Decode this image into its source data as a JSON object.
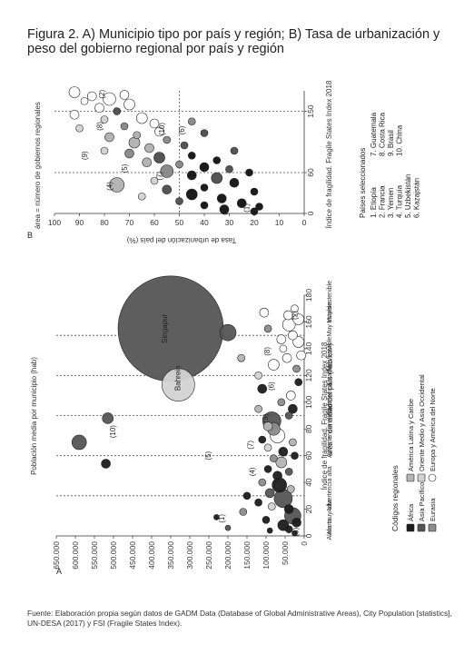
{
  "title": "Figura 2. A) Municipio tipo por país y región; B) Tasa de urbanización y peso del gobierno regional por país y región",
  "source": "Fuente: Elaboración propia según datos de GADM Data (Database of Global Administrative Areas), City Population [statistics], UN-DESA (2017) y FSI (Fragile States Index).",
  "colors": {
    "africa": "#1c1c1c",
    "asia_pacifico": "#555555",
    "eurasia": "#8c8c8c",
    "america_latina": "#b4b4b4",
    "oriente_medio": "#d3d3d3",
    "europa_america_norte": "#ffffff",
    "guide": "#555555"
  },
  "chart_data": [
    {
      "type": "scatter",
      "panel_label": "A",
      "ylabel": "Población media por municipio (hab)",
      "xlabel": "Índice de fragilidad. Fragile States Index 2018",
      "size_note": "área = densidad del país (hab/km²)",
      "y_ticks": [
        "0",
        "50.000",
        "100.000",
        "150.000",
        "200.000",
        "250.000",
        "300.000",
        "350.000",
        "400.000",
        "450.000",
        "500.000",
        "550.000",
        "600.000",
        "650.000"
      ],
      "x_ticks": [
        "0",
        "20",
        "40",
        "60",
        "80",
        "100",
        "120",
        "140",
        "160",
        "180"
      ],
      "xlim": [
        0,
        180
      ],
      "ylim": [
        0,
        650000
      ],
      "categories": [
        "Alerta muy alta",
        "Alerta",
        "Advertencia alta",
        "Advertencia elevada",
        "Advertencia",
        "Estable",
        "Más estable",
        "Muy estable",
        "Muy sostenible"
      ],
      "category_labels": [
        {
          "label": "Aleta muy alta",
          "x": 12
        },
        {
          "label": "Alerta",
          "x": 7
        },
        {
          "label": "Advertencia alta",
          "x": 35
        },
        {
          "label": "Advertencia elevada",
          "x": 80
        },
        {
          "label": "Advertencia",
          "x": 102
        },
        {
          "label": "Estable",
          "x": 120
        },
        {
          "label": "+",
          "x": 142
        },
        {
          "label": "Más estable",
          "x": 136
        },
        {
          "label": "Muy estable",
          "x": 162
        },
        {
          "label": "+",
          "x": 169
        },
        {
          "label": "Muy sostenible",
          "x": 175
        }
      ],
      "guides_x": [
        30,
        60,
        90,
        120,
        150
      ],
      "annotations": [
        {
          "text": "Singapur",
          "x": 155,
          "y": 360000
        },
        {
          "text": "Bahrein",
          "x": 118,
          "y": 325000
        },
        {
          "text": "(10)",
          "x": 78,
          "y": 495000
        },
        {
          "text": "(5)",
          "x": 60,
          "y": 245000
        },
        {
          "text": "(4)",
          "x": 48,
          "y": 130000
        },
        {
          "text": "(7)",
          "x": 68,
          "y": 135000
        },
        {
          "text": "(9)",
          "x": 88,
          "y": 95000
        },
        {
          "text": "(6)",
          "x": 112,
          "y": 80000
        },
        {
          "text": "(8)",
          "x": 138,
          "y": 90000
        },
        {
          "text": "(3)",
          "x": 3,
          "y": 15000
        },
        {
          "text": "(1)",
          "x": 13,
          "y": 210000
        },
        {
          "text": "(2)",
          "x": 165,
          "y": 18000
        }
      ],
      "points": [
        {
          "x": 155,
          "y": 350000,
          "r": 58,
          "region": "asia_pacifico"
        },
        {
          "x": 113,
          "y": 330000,
          "r": 18,
          "region": "oriente_medio"
        },
        {
          "x": 88,
          "y": 515000,
          "r": 6,
          "region": "asia_pacifico"
        },
        {
          "x": 70,
          "y": 590000,
          "r": 8,
          "region": "asia_pacifico"
        },
        {
          "x": 54,
          "y": 520000,
          "r": 5,
          "region": "africa"
        },
        {
          "x": 152,
          "y": 200000,
          "r": 9,
          "region": "asia_pacifico"
        },
        {
          "x": 133,
          "y": 165000,
          "r": 4,
          "region": "america_latina"
        },
        {
          "x": 167,
          "y": 105000,
          "r": 5,
          "region": "europa_america_norte"
        },
        {
          "x": 158,
          "y": 40000,
          "r": 7,
          "region": "europa_america_norte"
        },
        {
          "x": 165,
          "y": 42000,
          "r": 5,
          "region": "europa_america_norte"
        },
        {
          "x": 162,
          "y": 15000,
          "r": 6,
          "region": "europa_america_norte"
        },
        {
          "x": 170,
          "y": 25000,
          "r": 4,
          "region": "europa_america_norte"
        },
        {
          "x": 147,
          "y": 60000,
          "r": 5,
          "region": "europa_america_norte"
        },
        {
          "x": 140,
          "y": 55000,
          "r": 4,
          "region": "europa_america_norte"
        },
        {
          "x": 150,
          "y": 30000,
          "r": 5,
          "region": "europa_america_norte"
        },
        {
          "x": 145,
          "y": 15000,
          "r": 6,
          "region": "europa_america_norte"
        },
        {
          "x": 155,
          "y": 95000,
          "r": 4,
          "region": "eurasia"
        },
        {
          "x": 128,
          "y": 80000,
          "r": 6,
          "region": "europa_america_norte"
        },
        {
          "x": 133,
          "y": 45000,
          "r": 5,
          "region": "europa_america_norte"
        },
        {
          "x": 125,
          "y": 20000,
          "r": 4,
          "region": "eurasia"
        },
        {
          "x": 120,
          "y": 120000,
          "r": 4,
          "region": "oriente_medio"
        },
        {
          "x": 110,
          "y": 110000,
          "r": 5,
          "region": "africa"
        },
        {
          "x": 100,
          "y": 60000,
          "r": 4,
          "region": "eurasia"
        },
        {
          "x": 105,
          "y": 35000,
          "r": 5,
          "region": "europa_america_norte"
        },
        {
          "x": 95,
          "y": 120000,
          "r": 4,
          "region": "america_latina"
        },
        {
          "x": 86,
          "y": 85000,
          "r": 10,
          "region": "asia_pacifico"
        },
        {
          "x": 80,
          "y": 80000,
          "r": 7,
          "region": "eurasia"
        },
        {
          "x": 82,
          "y": 95000,
          "r": 5,
          "region": "america_latina"
        },
        {
          "x": 75,
          "y": 70000,
          "r": 8,
          "region": "europa_america_norte"
        },
        {
          "x": 72,
          "y": 110000,
          "r": 4,
          "region": "africa"
        },
        {
          "x": 66,
          "y": 95000,
          "r": 4,
          "region": "oriente_medio"
        },
        {
          "x": 63,
          "y": 55000,
          "r": 5,
          "region": "africa"
        },
        {
          "x": 58,
          "y": 80000,
          "r": 4,
          "region": "eurasia"
        },
        {
          "x": 60,
          "y": 25000,
          "r": 4,
          "region": "africa"
        },
        {
          "x": 55,
          "y": 60000,
          "r": 6,
          "region": "america_latina"
        },
        {
          "x": 50,
          "y": 95000,
          "r": 4,
          "region": "africa"
        },
        {
          "x": 48,
          "y": 40000,
          "r": 4,
          "region": "asia_pacifico"
        },
        {
          "x": 45,
          "y": 70000,
          "r": 5,
          "region": "africa"
        },
        {
          "x": 40,
          "y": 110000,
          "r": 4,
          "region": "eurasia"
        },
        {
          "x": 38,
          "y": 65000,
          "r": 8,
          "region": "africa"
        },
        {
          "x": 35,
          "y": 35000,
          "r": 4,
          "region": "america_latina"
        },
        {
          "x": 32,
          "y": 90000,
          "r": 5,
          "region": "asia_pacifico"
        },
        {
          "x": 30,
          "y": 150000,
          "r": 4,
          "region": "africa"
        },
        {
          "x": 28,
          "y": 55000,
          "r": 10,
          "region": "asia_pacifico"
        },
        {
          "x": 25,
          "y": 120000,
          "r": 4,
          "region": "africa"
        },
        {
          "x": 22,
          "y": 85000,
          "r": 4,
          "region": "oriente_medio"
        },
        {
          "x": 20,
          "y": 40000,
          "r": 5,
          "region": "africa"
        },
        {
          "x": 18,
          "y": 160000,
          "r": 4,
          "region": "eurasia"
        },
        {
          "x": 15,
          "y": 30000,
          "r": 9,
          "region": "asia_pacifico"
        },
        {
          "x": 12,
          "y": 100000,
          "r": 4,
          "region": "africa"
        },
        {
          "x": 10,
          "y": 20000,
          "r": 5,
          "region": "africa"
        },
        {
          "x": 8,
          "y": 55000,
          "r": 6,
          "region": "africa"
        },
        {
          "x": 5,
          "y": 40000,
          "r": 4,
          "region": "africa"
        },
        {
          "x": 4,
          "y": 90000,
          "r": 3,
          "region": "africa"
        },
        {
          "x": 2,
          "y": 25000,
          "r": 3,
          "region": "africa"
        },
        {
          "x": 14,
          "y": 230000,
          "r": 3,
          "region": "africa"
        },
        {
          "x": 6,
          "y": 200000,
          "r": 3,
          "region": "asia_pacifico"
        },
        {
          "x": 95,
          "y": 30000,
          "r": 5,
          "region": "africa"
        },
        {
          "x": 90,
          "y": 40000,
          "r": 4,
          "region": "asia_pacifico"
        },
        {
          "x": 70,
          "y": 30000,
          "r": 4,
          "region": "america_latina"
        },
        {
          "x": 115,
          "y": 15000,
          "r": 4,
          "region": "africa"
        },
        {
          "x": 135,
          "y": 8000,
          "r": 5,
          "region": "europa_america_norte"
        }
      ]
    },
    {
      "type": "scatter",
      "panel_label": "B",
      "ylabel": "Tasa de urbanización del país (%)",
      "xlabel": "Índice de fragilidad. Fragile States Index 2018",
      "size_note": "área = número de gobiernos regionales",
      "y_ticks": [
        "0",
        "10",
        "20",
        "30",
        "40",
        "50",
        "60",
        "70",
        "80",
        "90",
        "100"
      ],
      "x_ticks": [
        "0",
        "60",
        "150"
      ],
      "xlim": [
        0,
        180
      ],
      "ylim": [
        0,
        100
      ],
      "guides_x": [
        60,
        150
      ],
      "guides_y": [
        50
      ],
      "annotations": [
        {
          "text": "(2)",
          "x": 175,
          "y": 80
        },
        {
          "text": "(8)",
          "x": 128,
          "y": 81
        },
        {
          "text": "(9)",
          "x": 85,
          "y": 87
        },
        {
          "text": "(5)",
          "x": 66,
          "y": 71
        },
        {
          "text": "(4)",
          "x": 40,
          "y": 77
        },
        {
          "text": "(7)",
          "x": 55,
          "y": 57
        },
        {
          "text": "(10)",
          "x": 124,
          "y": 56
        },
        {
          "text": "(6)",
          "x": 122,
          "y": 48
        },
        {
          "text": "(3)",
          "x": 4,
          "y": 31
        },
        {
          "text": "(1)",
          "x": 8,
          "y": 22
        }
      ],
      "points": [
        {
          "x": 178,
          "y": 92,
          "r": 6,
          "region": "europa_america_norte"
        },
        {
          "x": 172,
          "y": 85,
          "r": 5,
          "region": "europa_america_norte"
        },
        {
          "x": 168,
          "y": 78,
          "r": 7,
          "region": "europa_america_norte"
        },
        {
          "x": 174,
          "y": 72,
          "r": 5,
          "region": "europa_america_norte"
        },
        {
          "x": 165,
          "y": 88,
          "r": 4,
          "region": "europa_america_norte"
        },
        {
          "x": 160,
          "y": 70,
          "r": 6,
          "region": "europa_america_norte"
        },
        {
          "x": 155,
          "y": 82,
          "r": 5,
          "region": "europa_america_norte"
        },
        {
          "x": 150,
          "y": 75,
          "r": 4,
          "region": "asia_pacifico"
        },
        {
          "x": 145,
          "y": 92,
          "r": 5,
          "region": "europa_america_norte"
        },
        {
          "x": 140,
          "y": 65,
          "r": 6,
          "region": "europa_america_norte"
        },
        {
          "x": 138,
          "y": 80,
          "r": 4,
          "region": "oriente_medio"
        },
        {
          "x": 132,
          "y": 60,
          "r": 5,
          "region": "europa_america_norte"
        },
        {
          "x": 128,
          "y": 72,
          "r": 4,
          "region": "eurasia"
        },
        {
          "x": 125,
          "y": 90,
          "r": 4,
          "region": "oriente_medio"
        },
        {
          "x": 120,
          "y": 58,
          "r": 5,
          "region": "europa_america_norte"
        },
        {
          "x": 115,
          "y": 67,
          "r": 4,
          "region": "america_latina"
        },
        {
          "x": 112,
          "y": 78,
          "r": 5,
          "region": "america_latina"
        },
        {
          "x": 108,
          "y": 55,
          "r": 4,
          "region": "eurasia"
        },
        {
          "x": 104,
          "y": 68,
          "r": 6,
          "region": "america_latina"
        },
        {
          "x": 100,
          "y": 48,
          "r": 4,
          "region": "asia_pacifico"
        },
        {
          "x": 96,
          "y": 62,
          "r": 5,
          "region": "america_latina"
        },
        {
          "x": 92,
          "y": 80,
          "r": 4,
          "region": "oriente_medio"
        },
        {
          "x": 88,
          "y": 70,
          "r": 5,
          "region": "eurasia"
        },
        {
          "x": 85,
          "y": 45,
          "r": 4,
          "region": "africa"
        },
        {
          "x": 82,
          "y": 58,
          "r": 6,
          "region": "asia_pacifico"
        },
        {
          "x": 78,
          "y": 35,
          "r": 4,
          "region": "africa"
        },
        {
          "x": 75,
          "y": 63,
          "r": 5,
          "region": "america_latina"
        },
        {
          "x": 72,
          "y": 50,
          "r": 4,
          "region": "eurasia"
        },
        {
          "x": 68,
          "y": 40,
          "r": 5,
          "region": "africa"
        },
        {
          "x": 65,
          "y": 30,
          "r": 4,
          "region": "asia_pacifico"
        },
        {
          "x": 62,
          "y": 55,
          "r": 7,
          "region": "eurasia"
        },
        {
          "x": 60,
          "y": 22,
          "r": 4,
          "region": "africa"
        },
        {
          "x": 56,
          "y": 45,
          "r": 5,
          "region": "africa"
        },
        {
          "x": 52,
          "y": 35,
          "r": 6,
          "region": "asia_pacifico"
        },
        {
          "x": 48,
          "y": 60,
          "r": 4,
          "region": "oriente_medio"
        },
        {
          "x": 45,
          "y": 28,
          "r": 5,
          "region": "africa"
        },
        {
          "x": 42,
          "y": 75,
          "r": 8,
          "region": "america_latina"
        },
        {
          "x": 38,
          "y": 40,
          "r": 4,
          "region": "africa"
        },
        {
          "x": 35,
          "y": 55,
          "r": 5,
          "region": "asia_pacifico"
        },
        {
          "x": 32,
          "y": 20,
          "r": 4,
          "region": "africa"
        },
        {
          "x": 28,
          "y": 45,
          "r": 6,
          "region": "africa"
        },
        {
          "x": 25,
          "y": 65,
          "r": 4,
          "region": "oriente_medio"
        },
        {
          "x": 22,
          "y": 33,
          "r": 5,
          "region": "africa"
        },
        {
          "x": 18,
          "y": 50,
          "r": 4,
          "region": "asia_pacifico"
        },
        {
          "x": 15,
          "y": 25,
          "r": 5,
          "region": "africa"
        },
        {
          "x": 12,
          "y": 40,
          "r": 4,
          "region": "africa"
        },
        {
          "x": 10,
          "y": 18,
          "r": 4,
          "region": "africa"
        },
        {
          "x": 6,
          "y": 32,
          "r": 5,
          "region": "africa"
        },
        {
          "x": 3,
          "y": 20,
          "r": 4,
          "region": "africa"
        },
        {
          "x": 118,
          "y": 40,
          "r": 4,
          "region": "asia_pacifico"
        },
        {
          "x": 135,
          "y": 45,
          "r": 4,
          "region": "eurasia"
        },
        {
          "x": 92,
          "y": 28,
          "r": 4,
          "region": "asia_pacifico"
        }
      ],
      "selected_countries_title": "Países seleccionados",
      "selected_countries": [
        "1. Etiopía",
        "2. Francia",
        "3. Yemen",
        "4. Turquía",
        "5. Uzbekistán",
        "6. Kazajstán",
        "7. Guatemala",
        "8. Costa Rica",
        "9. Brasil",
        "10. China"
      ]
    }
  ],
  "legend": {
    "title": "Códigos regionales",
    "items": [
      {
        "key": "africa",
        "label": "África"
      },
      {
        "key": "asia_pacifico",
        "label": "Asia Pacífico"
      },
      {
        "key": "eurasia",
        "label": "Eurasia"
      },
      {
        "key": "america_latina",
        "label": "América Latina y Caribe"
      },
      {
        "key": "oriente_medio",
        "label": "Oriente Medio y Asia Occidental"
      },
      {
        "key": "europa_america_norte",
        "label": "Europa y América del Norte"
      }
    ]
  }
}
